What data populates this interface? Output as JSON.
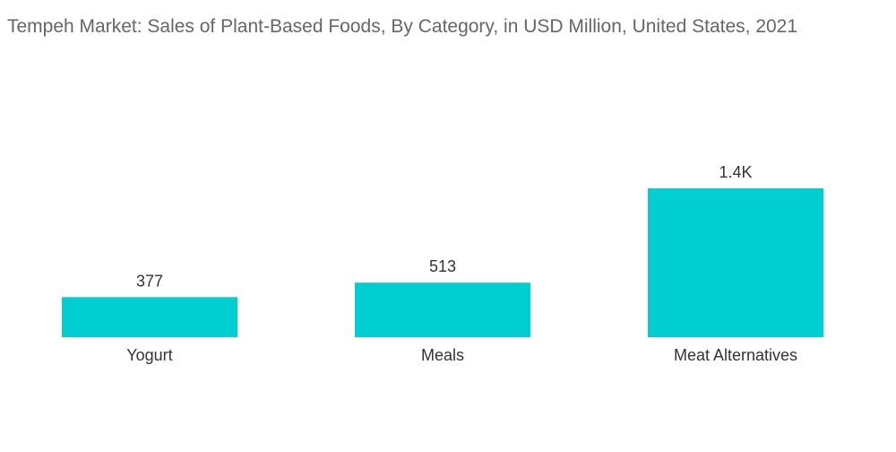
{
  "chart_data": {
    "type": "bar",
    "title": "Tempeh Market: Sales of Plant-Based Foods, By Category, in USD Million, United States, 2021",
    "categories": [
      "Yogurt",
      "Meals",
      "Meat Alternatives"
    ],
    "values": [
      377,
      513,
      1400
    ],
    "value_labels": [
      "377",
      "513",
      "1.4K"
    ],
    "bar_color": "#00CED1",
    "ylim": [
      0,
      1400
    ],
    "grid": false,
    "legend": "none"
  }
}
